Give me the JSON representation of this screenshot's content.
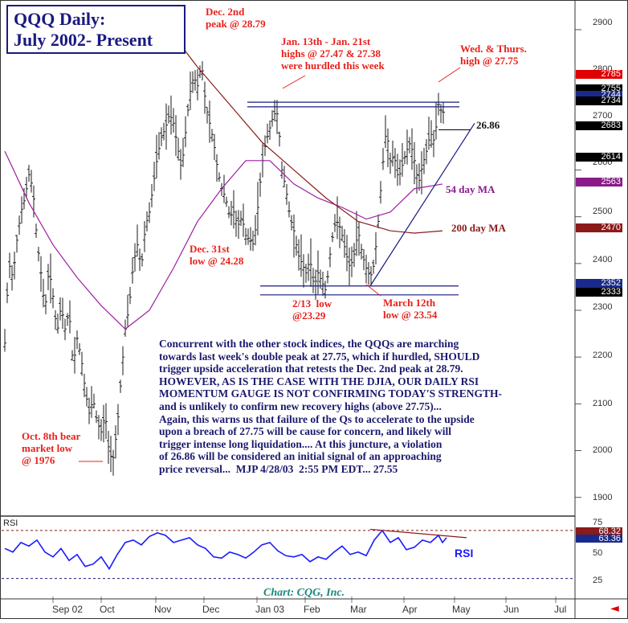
{
  "title": {
    "line1": "QQQ Daily:",
    "line2": "July 2002- Present"
  },
  "credit": "Chart: CQG, Inc.",
  "colors": {
    "bars": "#1a1a1a",
    "ma54": "#9b1fa0",
    "ma200": "#8b1a1a",
    "annotation": "#e8211b",
    "commentary": "#1b1a6e",
    "rsi_line": "#1a1aff",
    "credit": "#18897c"
  },
  "annotations": {
    "dec2": "Dec. 2nd\npeak @ 28.79",
    "jan": "Jan. 13th - Jan. 21st\nhighs @ 27.47 & 27.38\nwere hurdled this week",
    "wedthurs": "Wed. & Thurs.\nhigh @ 27.75",
    "level_2686": "26.86",
    "ma54": "54 day MA",
    "ma200": "200 day MA",
    "dec31": "Dec. 31st\nlow @ 24.28",
    "feb13": "2/13  low\n@23.29",
    "mar12": "March 12th\nlow @ 23.54",
    "oct8": "Oct. 8th bear\nmarket low\n@ 1976",
    "rsi": "RSI"
  },
  "commentary": "Concurrent with the other stock indices, the QQQs are marching\ntowards last week's double peak at 27.75, which if hurdled, SHOULD\ntrigger upside acceleration that retests the Dec. 2nd peak at 28.79.\nHOWEVER, AS IS THE CASE WITH THE DJIA, OUR DAILY RSI\nMOMENTUM GAUGE IS NOT CONFIRMING TODAY'S STRENGTH-\nand is unlikely to confirm new recovery highs (above 27.75)...\nAgain, this warns us that failure of the Qs to accelerate to the upside\nupon a breach of 27.75 will be cause for concern, and likely will\ntrigger intense long liquidation.... At this juncture, a violation\nof 26.86 will be considered an initial signal of an approaching\nprice reversal...  MJP 4/28/03  2:55 PM EDT... 27.55",
  "price_tags": [
    {
      "value": "2785",
      "bg": "#e00000",
      "fg": "#ffffff"
    },
    {
      "value": "2755",
      "bg": "#000000",
      "fg": "#ffffff"
    },
    {
      "value": "2744",
      "bg": "#1a2a8a",
      "fg": "#ffffff"
    },
    {
      "value": "2734",
      "bg": "#000000",
      "fg": "#ffffff"
    },
    {
      "value": "2683",
      "bg": "#000000",
      "fg": "#ffffff"
    },
    {
      "value": "2614",
      "bg": "#000000",
      "fg": "#ffffff"
    },
    {
      "value": "2563",
      "bg": "#8a1a8a",
      "fg": "#ffffff"
    },
    {
      "value": "2470",
      "bg": "#8b1a1a",
      "fg": "#ffffff"
    },
    {
      "value": "2352",
      "bg": "#1a2a8a",
      "fg": "#ffffff"
    },
    {
      "value": "2333",
      "bg": "#000000",
      "fg": "#ffffff"
    }
  ],
  "rsi_tags": [
    {
      "value": "68.32",
      "bg": "#8b1a1a",
      "fg": "#ffffff"
    },
    {
      "value": "63.36",
      "bg": "#1a2a8a",
      "fg": "#ffffff"
    }
  ],
  "chart_data": {
    "type": "bar",
    "title": "QQQ Daily: July 2002- Present",
    "y_ticks": [
      "2900",
      "2800",
      "2700",
      "2600",
      "2500",
      "2400",
      "2300",
      "2200",
      "2100",
      "2000",
      "1900"
    ],
    "ylim": [
      1860,
      2960
    ],
    "x_ticks": [
      "Sep 02",
      "Oct",
      "Nov",
      "Dec",
      "Jan 03",
      "Feb",
      "Mar",
      "Apr",
      "May",
      "Jun",
      "Jul"
    ],
    "price_path": [
      [
        0,
        2230
      ],
      [
        5,
        2400
      ],
      [
        10,
        2370
      ],
      [
        15,
        2450
      ],
      [
        20,
        2510
      ],
      [
        25,
        2540
      ],
      [
        30,
        2590
      ],
      [
        35,
        2560
      ],
      [
        40,
        2450
      ],
      [
        45,
        2380
      ],
      [
        50,
        2300
      ],
      [
        55,
        2390
      ],
      [
        60,
        2330
      ],
      [
        65,
        2250
      ],
      [
        70,
        2310
      ],
      [
        75,
        2260
      ],
      [
        80,
        2300
      ],
      [
        85,
        2180
      ],
      [
        90,
        2240
      ],
      [
        95,
        2200
      ],
      [
        100,
        2130
      ],
      [
        105,
        2080
      ],
      [
        110,
        2110
      ],
      [
        115,
        2060
      ],
      [
        120,
        2040
      ],
      [
        125,
        2080
      ],
      [
        130,
        1990
      ],
      [
        135,
        1985
      ],
      [
        140,
        2050
      ],
      [
        145,
        2160
      ],
      [
        150,
        2260
      ],
      [
        155,
        2310
      ],
      [
        160,
        2400
      ],
      [
        165,
        2440
      ],
      [
        170,
        2390
      ],
      [
        175,
        2480
      ],
      [
        180,
        2510
      ],
      [
        185,
        2570
      ],
      [
        190,
        2630
      ],
      [
        195,
        2670
      ],
      [
        200,
        2690
      ],
      [
        205,
        2720
      ],
      [
        210,
        2700
      ],
      [
        215,
        2650
      ],
      [
        220,
        2600
      ],
      [
        225,
        2680
      ],
      [
        230,
        2760
      ],
      [
        235,
        2800
      ],
      [
        240,
        2780
      ],
      [
        245,
        2830
      ],
      [
        250,
        2740
      ],
      [
        255,
        2700
      ],
      [
        260,
        2660
      ],
      [
        265,
        2600
      ],
      [
        270,
        2560
      ],
      [
        275,
        2540
      ],
      [
        280,
        2500
      ],
      [
        285,
        2510
      ],
      [
        290,
        2480
      ],
      [
        295,
        2500
      ],
      [
        300,
        2460
      ],
      [
        305,
        2450
      ],
      [
        310,
        2440
      ],
      [
        315,
        2520
      ],
      [
        320,
        2610
      ],
      [
        325,
        2660
      ],
      [
        330,
        2690
      ],
      [
        335,
        2720
      ],
      [
        340,
        2720
      ],
      [
        345,
        2600
      ],
      [
        350,
        2560
      ],
      [
        355,
        2500
      ],
      [
        360,
        2470
      ],
      [
        365,
        2420
      ],
      [
        370,
        2400
      ],
      [
        375,
        2380
      ],
      [
        380,
        2410
      ],
      [
        385,
        2350
      ],
      [
        390,
        2380
      ],
      [
        395,
        2360
      ],
      [
        400,
        2340
      ],
      [
        405,
        2420
      ],
      [
        410,
        2480
      ],
      [
        415,
        2490
      ],
      [
        420,
        2460
      ],
      [
        425,
        2420
      ],
      [
        430,
        2390
      ],
      [
        435,
        2420
      ],
      [
        440,
        2470
      ],
      [
        445,
        2420
      ],
      [
        450,
        2390
      ],
      [
        455,
        2370
      ],
      [
        460,
        2400
      ],
      [
        465,
        2490
      ],
      [
        470,
        2600
      ],
      [
        475,
        2690
      ],
      [
        480,
        2620
      ],
      [
        485,
        2630
      ],
      [
        490,
        2580
      ],
      [
        495,
        2610
      ],
      [
        500,
        2640
      ],
      [
        505,
        2660
      ],
      [
        510,
        2620
      ],
      [
        515,
        2570
      ],
      [
        520,
        2610
      ],
      [
        525,
        2640
      ],
      [
        530,
        2680
      ],
      [
        535,
        2660
      ],
      [
        540,
        2740
      ],
      [
        545,
        2720
      ],
      [
        548,
        2730
      ]
    ],
    "ma54": [
      [
        0,
        2640
      ],
      [
        30,
        2530
      ],
      [
        60,
        2440
      ],
      [
        90,
        2370
      ],
      [
        120,
        2310
      ],
      [
        150,
        2260
      ],
      [
        180,
        2300
      ],
      [
        210,
        2390
      ],
      [
        240,
        2490
      ],
      [
        270,
        2560
      ],
      [
        300,
        2620
      ],
      [
        330,
        2620
      ],
      [
        360,
        2570
      ],
      [
        390,
        2540
      ],
      [
        420,
        2520
      ],
      [
        450,
        2495
      ],
      [
        480,
        2510
      ],
      [
        510,
        2560
      ],
      [
        545,
        2570
      ]
    ],
    "ma200": [
      [
        200,
        2910
      ],
      [
        240,
        2820
      ],
      [
        280,
        2740
      ],
      [
        320,
        2660
      ],
      [
        360,
        2600
      ],
      [
        400,
        2540
      ],
      [
        440,
        2490
      ],
      [
        480,
        2470
      ],
      [
        510,
        2465
      ],
      [
        545,
        2470
      ]
    ],
    "trendlines": [
      {
        "kind": "resistance",
        "from": [
          302,
          2745
        ],
        "to": [
          566,
          2745
        ]
      },
      {
        "kind": "resistance",
        "from": [
          302,
          2735
        ],
        "to": [
          566,
          2735
        ]
      },
      {
        "kind": "support",
        "from": [
          318,
          2352
        ],
        "to": [
          565,
          2352
        ]
      },
      {
        "kind": "support",
        "from": [
          318,
          2333
        ],
        "to": [
          565,
          2333
        ]
      },
      {
        "kind": "uptrend",
        "from": [
          455,
          2352
        ],
        "to": [
          585,
          2700
        ]
      }
    ],
    "rsi": {
      "ylim": [
        15,
        80
      ],
      "y_ticks": [
        "75",
        "50",
        "25"
      ],
      "overbought": 70,
      "oversold": 30,
      "values": [
        [
          0,
          55
        ],
        [
          10,
          52
        ],
        [
          20,
          60
        ],
        [
          30,
          57
        ],
        [
          40,
          62
        ],
        [
          50,
          52
        ],
        [
          60,
          48
        ],
        [
          70,
          55
        ],
        [
          80,
          45
        ],
        [
          90,
          50
        ],
        [
          100,
          40
        ],
        [
          110,
          42
        ],
        [
          120,
          48
        ],
        [
          130,
          38
        ],
        [
          140,
          50
        ],
        [
          150,
          60
        ],
        [
          160,
          62
        ],
        [
          170,
          58
        ],
        [
          180,
          65
        ],
        [
          190,
          68
        ],
        [
          200,
          66
        ],
        [
          210,
          60
        ],
        [
          220,
          62
        ],
        [
          230,
          64
        ],
        [
          240,
          58
        ],
        [
          250,
          55
        ],
        [
          260,
          48
        ],
        [
          270,
          47
        ],
        [
          280,
          52
        ],
        [
          290,
          50
        ],
        [
          300,
          47
        ],
        [
          310,
          52
        ],
        [
          320,
          58
        ],
        [
          330,
          60
        ],
        [
          340,
          53
        ],
        [
          350,
          49
        ],
        [
          360,
          48
        ],
        [
          370,
          50
        ],
        [
          380,
          44
        ],
        [
          390,
          48
        ],
        [
          400,
          46
        ],
        [
          410,
          52
        ],
        [
          420,
          57
        ],
        [
          430,
          50
        ],
        [
          440,
          52
        ],
        [
          450,
          49
        ],
        [
          460,
          62
        ],
        [
          470,
          70
        ],
        [
          480,
          60
        ],
        [
          490,
          64
        ],
        [
          500,
          54
        ],
        [
          510,
          56
        ],
        [
          520,
          62
        ],
        [
          530,
          60
        ],
        [
          540,
          66
        ],
        [
          545,
          60
        ],
        [
          550,
          64
        ]
      ],
      "divergence_line": {
        "from": [
          455,
          71
        ],
        "to": [
          575,
          64
        ]
      }
    }
  }
}
